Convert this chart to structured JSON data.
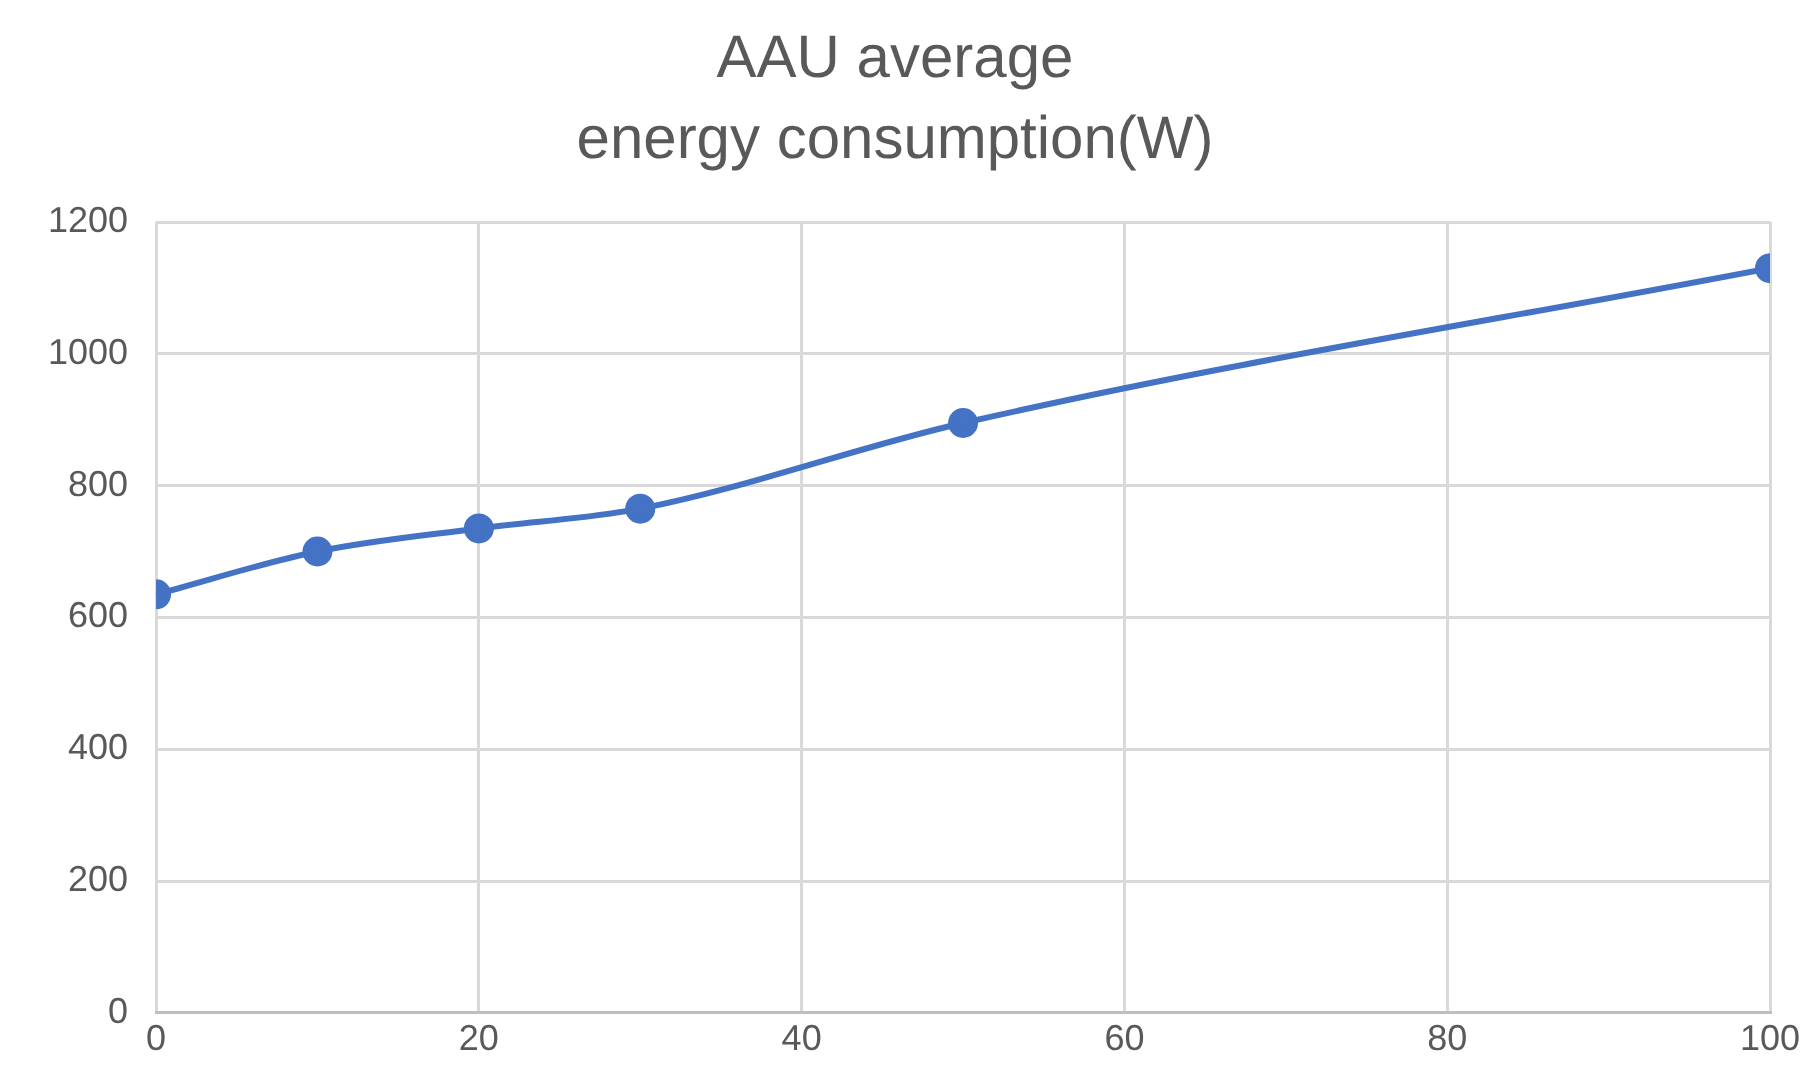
{
  "chart_data": {
    "type": "line",
    "title": "AAU average\nenergy consumption(W)",
    "x": [
      0,
      10,
      20,
      30,
      50,
      100
    ],
    "series": [
      {
        "color": "#4472c4",
        "values": [
          635,
          700,
          735,
          765,
          895,
          1130
        ]
      }
    ],
    "xlim": [
      0,
      100
    ],
    "xticks": [
      0,
      20,
      40,
      60,
      80,
      100
    ],
    "ylim": [
      0,
      1200
    ],
    "yticks": [
      0,
      200,
      400,
      600,
      800,
      1000,
      1200
    ],
    "grid": true,
    "legend": false,
    "marker": "circle",
    "line_style": "solid"
  }
}
